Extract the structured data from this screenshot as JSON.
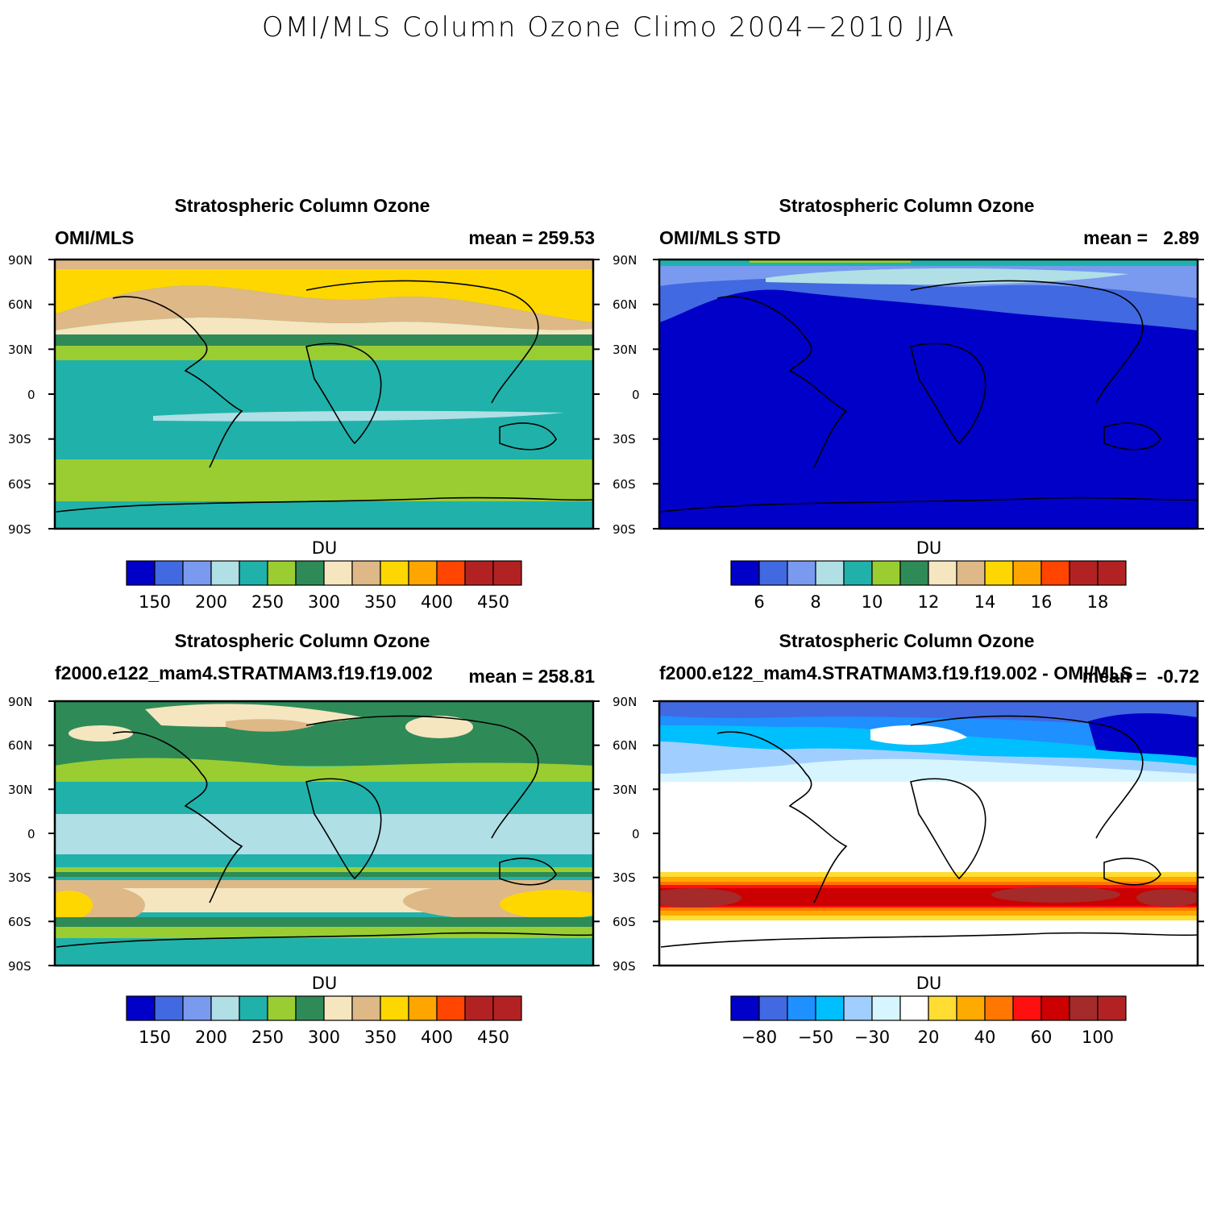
{
  "title": "OMI/MLS Column Ozone Climo 2004−2010 JJA",
  "lat_labels": [
    "90N",
    "60N",
    "30N",
    "0",
    "30S",
    "60S",
    "90S"
  ],
  "palette_du": [
    "#0000c8",
    "#4169e1",
    "#7a9af0",
    "#b0dfe5",
    "#20b2aa",
    "#9acd32",
    "#2e8b57",
    "#f5e6c0",
    "#deb887",
    "#ffd700",
    "#ffa500",
    "#ff4500",
    "#b22222",
    "#b22222"
  ],
  "palette_diff": [
    "#0000c8",
    "#4169e1",
    "#1e90ff",
    "#00bfff",
    "#a0cfff",
    "#d6f5ff",
    "#ffffff",
    "#ffdd33",
    "#ffaa00",
    "#ff7700",
    "#ff1010",
    "#cc0000",
    "#a52a2a",
    "#b22222"
  ],
  "panels": [
    {
      "title": "Stratospheric Column Ozone",
      "left_label": "OMI/MLS",
      "right_label": "mean = 259.53",
      "colorbar_label": "DU",
      "colorbar_ticks": [
        "150",
        "200",
        "250",
        "300",
        "350",
        "400",
        "450"
      ],
      "palette": "du"
    },
    {
      "title": "Stratospheric Column Ozone",
      "left_label": "OMI/MLS STD",
      "right_label": "mean =   2.89",
      "colorbar_label": "DU",
      "colorbar_ticks": [
        "6",
        "8",
        "10",
        "12",
        "14",
        "16",
        "18"
      ],
      "palette": "du"
    },
    {
      "title": "Stratospheric Column Ozone",
      "left_label": "f2000.e122_mam4.STRATMAM3.f19.f19.002",
      "right_label": "mean = 258.81",
      "colorbar_label": "DU",
      "colorbar_ticks": [
        "150",
        "200",
        "250",
        "300",
        "350",
        "400",
        "450"
      ],
      "palette": "du"
    },
    {
      "title": "Stratospheric Column Ozone",
      "left_label": "f2000.e122_mam4.STRATMAM3.f19.f19.002 - OMI/MLS",
      "right_label": "mean =  -0.72",
      "colorbar_label": "DU",
      "colorbar_ticks": [
        "−80",
        "−50",
        "−30",
        "20",
        "40",
        "60",
        "100"
      ],
      "palette": "diff"
    }
  ]
}
